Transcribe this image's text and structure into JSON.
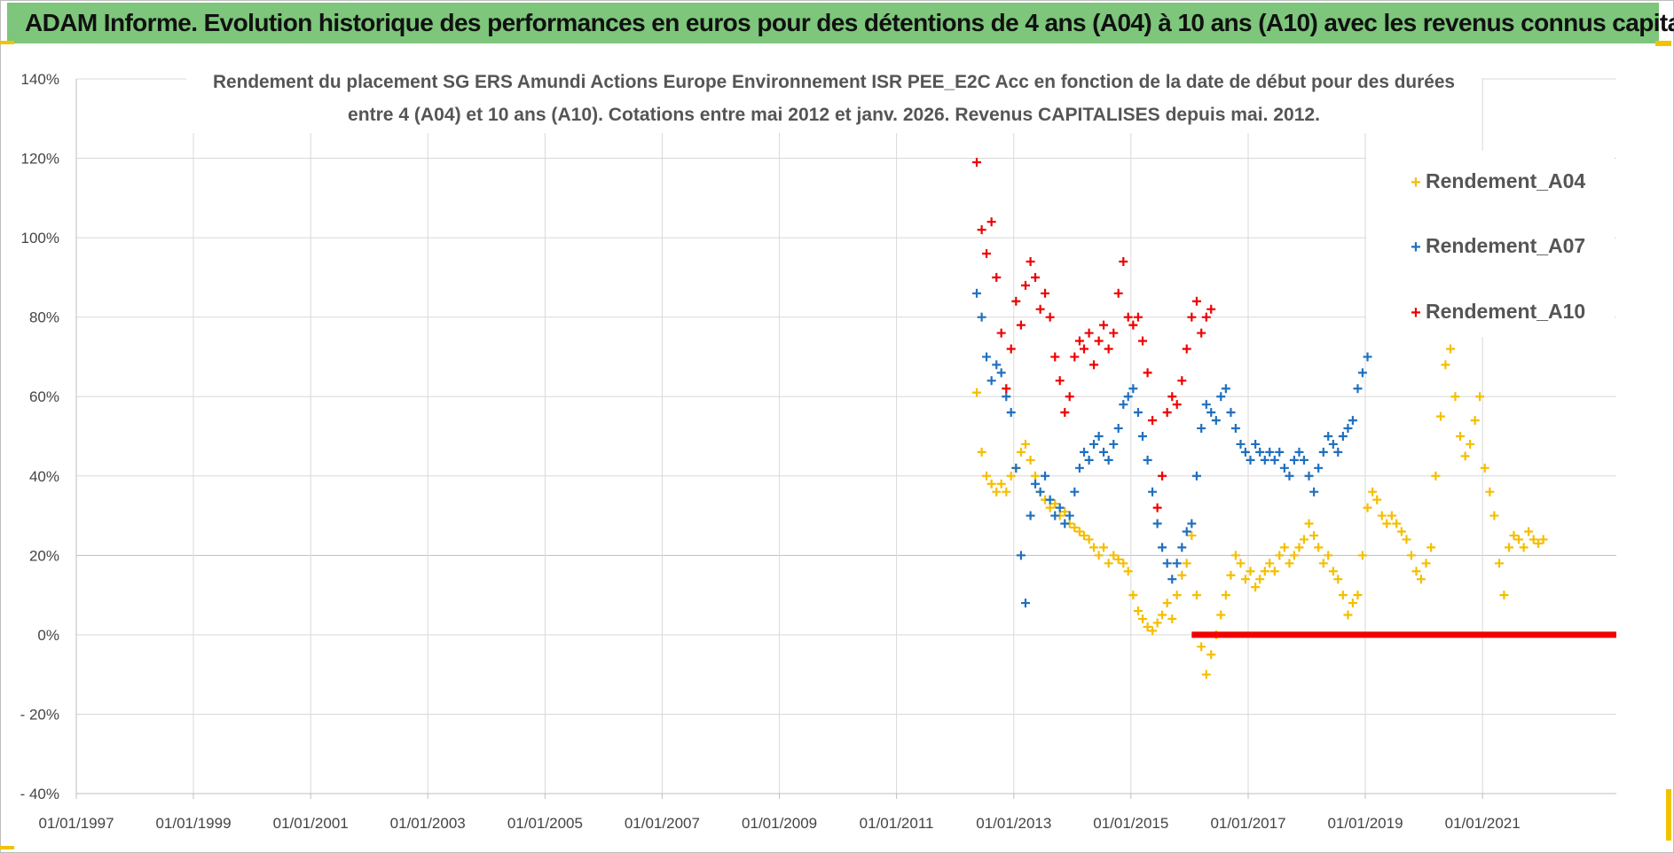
{
  "header": {
    "title": "ADAM Informe. Evolution historique des performances en euros pour des détentions de 4 ans (A04) à 10 ans (A10) avec les revenus connus capitalisés"
  },
  "colors": {
    "banner": "#7dc67b",
    "A04": "#f5be00",
    "A07": "#1f6fbf",
    "A10": "#f00000",
    "grid": "#d9d9d9"
  },
  "chart_data": {
    "type": "scatter",
    "title_lines": [
      "Rendement du placement SG ERS Amundi Actions Europe Environnement ISR PEE_E2C Acc  en fonction de la date de début pour des durées",
      "entre 4 (A04) et 10 ans (A10). Cotations entre mai 2012 et janv. 2026. Revenus CAPITALISES depuis mai. 2012."
    ],
    "x_axis": {
      "type": "date",
      "range": [
        "1997-01-01",
        "2023-04-15"
      ],
      "tick_labels": [
        "01/01/1997",
        "01/01/1999",
        "01/01/2001",
        "01/01/2003",
        "01/01/2005",
        "01/01/2007",
        "01/01/2009",
        "01/01/2011",
        "01/01/2013",
        "01/01/2015",
        "01/01/2017",
        "01/01/2019",
        "01/01/2021"
      ]
    },
    "y_axis": {
      "unit": "percent",
      "range": [
        -40,
        140
      ],
      "ticks": [
        -40,
        -20,
        0,
        20,
        40,
        60,
        80,
        100,
        120,
        140
      ],
      "tick_labels": [
        "- 40%",
        "- 20%",
        "0%",
        "20%",
        "40%",
        "60%",
        "80%",
        "100%",
        "120%",
        "140%"
      ]
    },
    "grid": true,
    "legend_position": "top-right",
    "series": [
      {
        "name": "Rendement_A04",
        "marker": "+",
        "color": "#f5be00",
        "points": [
          [
            "2012-05-15",
            61
          ],
          [
            "2012-06-15",
            46
          ],
          [
            "2012-07-15",
            40
          ],
          [
            "2012-08-15",
            38
          ],
          [
            "2012-09-15",
            36
          ],
          [
            "2012-10-15",
            38
          ],
          [
            "2012-11-15",
            36
          ],
          [
            "2012-12-15",
            40
          ],
          [
            "2013-01-15",
            42
          ],
          [
            "2013-02-15",
            46
          ],
          [
            "2013-03-15",
            48
          ],
          [
            "2013-04-15",
            44
          ],
          [
            "2013-05-15",
            40
          ],
          [
            "2013-06-15",
            36
          ],
          [
            "2013-07-15",
            34
          ],
          [
            "2013-08-15",
            32
          ],
          [
            "2013-09-15",
            33
          ],
          [
            "2013-10-15",
            30
          ],
          [
            "2013-11-15",
            31
          ],
          [
            "2013-12-15",
            28
          ],
          [
            "2014-01-15",
            27
          ],
          [
            "2014-02-15",
            26
          ],
          [
            "2014-03-15",
            25
          ],
          [
            "2014-04-15",
            24
          ],
          [
            "2014-05-15",
            22
          ],
          [
            "2014-06-15",
            20
          ],
          [
            "2014-07-15",
            22
          ],
          [
            "2014-08-15",
            18
          ],
          [
            "2014-09-15",
            20
          ],
          [
            "2014-10-15",
            19
          ],
          [
            "2014-11-15",
            18
          ],
          [
            "2014-12-15",
            16
          ],
          [
            "2015-01-15",
            10
          ],
          [
            "2015-02-15",
            6
          ],
          [
            "2015-03-15",
            4
          ],
          [
            "2015-04-15",
            2
          ],
          [
            "2015-05-15",
            1
          ],
          [
            "2015-06-15",
            3
          ],
          [
            "2015-07-15",
            5
          ],
          [
            "2015-08-15",
            8
          ],
          [
            "2015-09-15",
            4
          ],
          [
            "2015-10-15",
            10
          ],
          [
            "2015-11-15",
            15
          ],
          [
            "2015-12-15",
            18
          ],
          [
            "2016-01-15",
            25
          ],
          [
            "2016-02-15",
            10
          ],
          [
            "2016-03-15",
            -3
          ],
          [
            "2016-04-15",
            -10
          ],
          [
            "2016-05-15",
            -5
          ],
          [
            "2016-06-15",
            0
          ],
          [
            "2016-07-15",
            5
          ],
          [
            "2016-08-15",
            10
          ],
          [
            "2016-09-15",
            15
          ],
          [
            "2016-10-15",
            20
          ],
          [
            "2016-11-15",
            18
          ],
          [
            "2016-12-15",
            14
          ],
          [
            "2017-01-15",
            16
          ],
          [
            "2017-02-15",
            12
          ],
          [
            "2017-03-15",
            14
          ],
          [
            "2017-04-15",
            16
          ],
          [
            "2017-05-15",
            18
          ],
          [
            "2017-06-15",
            16
          ],
          [
            "2017-07-15",
            20
          ],
          [
            "2017-08-15",
            22
          ],
          [
            "2017-09-15",
            18
          ],
          [
            "2017-10-15",
            20
          ],
          [
            "2017-11-15",
            22
          ],
          [
            "2017-12-15",
            24
          ],
          [
            "2018-01-15",
            28
          ],
          [
            "2018-02-15",
            25
          ],
          [
            "2018-03-15",
            22
          ],
          [
            "2018-04-15",
            18
          ],
          [
            "2018-05-15",
            20
          ],
          [
            "2018-06-15",
            16
          ],
          [
            "2018-07-15",
            14
          ],
          [
            "2018-08-15",
            10
          ],
          [
            "2018-09-15",
            5
          ],
          [
            "2018-10-15",
            8
          ],
          [
            "2018-11-15",
            10
          ],
          [
            "2018-12-15",
            20
          ],
          [
            "2019-01-15",
            32
          ],
          [
            "2019-02-15",
            36
          ],
          [
            "2019-03-15",
            34
          ],
          [
            "2019-04-15",
            30
          ],
          [
            "2019-05-15",
            28
          ],
          [
            "2019-06-15",
            30
          ],
          [
            "2019-07-15",
            28
          ],
          [
            "2019-08-15",
            26
          ],
          [
            "2019-09-15",
            24
          ],
          [
            "2019-10-15",
            20
          ],
          [
            "2019-11-15",
            16
          ],
          [
            "2019-12-15",
            14
          ],
          [
            "2020-01-15",
            18
          ],
          [
            "2020-02-15",
            22
          ],
          [
            "2020-03-15",
            40
          ],
          [
            "2020-04-15",
            55
          ],
          [
            "2020-05-15",
            68
          ],
          [
            "2020-06-15",
            72
          ],
          [
            "2020-07-15",
            60
          ],
          [
            "2020-08-15",
            50
          ],
          [
            "2020-09-15",
            45
          ],
          [
            "2020-10-15",
            48
          ],
          [
            "2020-11-15",
            54
          ],
          [
            "2020-12-15",
            60
          ],
          [
            "2021-01-15",
            42
          ],
          [
            "2021-02-15",
            36
          ],
          [
            "2021-03-15",
            30
          ],
          [
            "2021-04-15",
            18
          ],
          [
            "2021-05-15",
            10
          ],
          [
            "2021-06-15",
            22
          ],
          [
            "2021-07-15",
            25
          ],
          [
            "2021-08-15",
            24
          ],
          [
            "2021-09-15",
            22
          ],
          [
            "2021-10-15",
            26
          ],
          [
            "2021-11-15",
            24
          ],
          [
            "2021-12-15",
            23
          ],
          [
            "2022-01-15",
            24
          ]
        ]
      },
      {
        "name": "Rendement_A07",
        "marker": "+",
        "color": "#1f6fbf",
        "points": [
          [
            "2012-05-15",
            86
          ],
          [
            "2012-06-15",
            80
          ],
          [
            "2012-07-15",
            70
          ],
          [
            "2012-08-15",
            64
          ],
          [
            "2012-09-15",
            68
          ],
          [
            "2012-10-15",
            66
          ],
          [
            "2012-11-15",
            60
          ],
          [
            "2012-12-15",
            56
          ],
          [
            "2013-01-15",
            42
          ],
          [
            "2013-02-15",
            20
          ],
          [
            "2013-03-15",
            8
          ],
          [
            "2013-04-15",
            30
          ],
          [
            "2013-05-15",
            38
          ],
          [
            "2013-06-15",
            36
          ],
          [
            "2013-07-15",
            40
          ],
          [
            "2013-08-15",
            34
          ],
          [
            "2013-09-15",
            30
          ],
          [
            "2013-10-15",
            32
          ],
          [
            "2013-11-15",
            28
          ],
          [
            "2013-12-15",
            30
          ],
          [
            "2014-01-15",
            36
          ],
          [
            "2014-02-15",
            42
          ],
          [
            "2014-03-15",
            46
          ],
          [
            "2014-04-15",
            44
          ],
          [
            "2014-05-15",
            48
          ],
          [
            "2014-06-15",
            50
          ],
          [
            "2014-07-15",
            46
          ],
          [
            "2014-08-15",
            44
          ],
          [
            "2014-09-15",
            48
          ],
          [
            "2014-10-15",
            52
          ],
          [
            "2014-11-15",
            58
          ],
          [
            "2014-12-15",
            60
          ],
          [
            "2015-01-15",
            62
          ],
          [
            "2015-02-15",
            56
          ],
          [
            "2015-03-15",
            50
          ],
          [
            "2015-04-15",
            44
          ],
          [
            "2015-05-15",
            36
          ],
          [
            "2015-06-15",
            28
          ],
          [
            "2015-07-15",
            22
          ],
          [
            "2015-08-15",
            18
          ],
          [
            "2015-09-15",
            14
          ],
          [
            "2015-10-15",
            18
          ],
          [
            "2015-11-15",
            22
          ],
          [
            "2015-12-15",
            26
          ],
          [
            "2016-01-15",
            28
          ],
          [
            "2016-02-15",
            40
          ],
          [
            "2016-03-15",
            52
          ],
          [
            "2016-04-15",
            58
          ],
          [
            "2016-05-15",
            56
          ],
          [
            "2016-06-15",
            54
          ],
          [
            "2016-07-15",
            60
          ],
          [
            "2016-08-15",
            62
          ],
          [
            "2016-09-15",
            56
          ],
          [
            "2016-10-15",
            52
          ],
          [
            "2016-11-15",
            48
          ],
          [
            "2016-12-15",
            46
          ],
          [
            "2017-01-15",
            44
          ],
          [
            "2017-02-15",
            48
          ],
          [
            "2017-03-15",
            46
          ],
          [
            "2017-04-15",
            44
          ],
          [
            "2017-05-15",
            46
          ],
          [
            "2017-06-15",
            44
          ],
          [
            "2017-07-15",
            46
          ],
          [
            "2017-08-15",
            42
          ],
          [
            "2017-09-15",
            40
          ],
          [
            "2017-10-15",
            44
          ],
          [
            "2017-11-15",
            46
          ],
          [
            "2017-12-15",
            44
          ],
          [
            "2018-01-15",
            40
          ],
          [
            "2018-02-15",
            36
          ],
          [
            "2018-03-15",
            42
          ],
          [
            "2018-04-15",
            46
          ],
          [
            "2018-05-15",
            50
          ],
          [
            "2018-06-15",
            48
          ],
          [
            "2018-07-15",
            46
          ],
          [
            "2018-08-15",
            50
          ],
          [
            "2018-09-15",
            52
          ],
          [
            "2018-10-15",
            54
          ],
          [
            "2018-11-15",
            62
          ],
          [
            "2018-12-15",
            66
          ],
          [
            "2019-01-15",
            70
          ]
        ]
      },
      {
        "name": "Rendement_A10",
        "marker": "+",
        "color": "#f00000",
        "points": [
          [
            "2012-05-15",
            119
          ],
          [
            "2012-06-15",
            102
          ],
          [
            "2012-07-15",
            96
          ],
          [
            "2012-08-15",
            104
          ],
          [
            "2012-09-15",
            90
          ],
          [
            "2012-10-15",
            76
          ],
          [
            "2012-11-15",
            62
          ],
          [
            "2012-12-15",
            72
          ],
          [
            "2013-01-15",
            84
          ],
          [
            "2013-02-15",
            78
          ],
          [
            "2013-03-15",
            88
          ],
          [
            "2013-04-15",
            94
          ],
          [
            "2013-05-15",
            90
          ],
          [
            "2013-06-15",
            82
          ],
          [
            "2013-07-15",
            86
          ],
          [
            "2013-08-15",
            80
          ],
          [
            "2013-09-15",
            70
          ],
          [
            "2013-10-15",
            64
          ],
          [
            "2013-11-15",
            56
          ],
          [
            "2013-12-15",
            60
          ],
          [
            "2014-01-15",
            70
          ],
          [
            "2014-02-15",
            74
          ],
          [
            "2014-03-15",
            72
          ],
          [
            "2014-04-15",
            76
          ],
          [
            "2014-05-15",
            68
          ],
          [
            "2014-06-15",
            74
          ],
          [
            "2014-07-15",
            78
          ],
          [
            "2014-08-15",
            72
          ],
          [
            "2014-09-15",
            76
          ],
          [
            "2014-10-15",
            86
          ],
          [
            "2014-11-15",
            94
          ],
          [
            "2014-12-15",
            80
          ],
          [
            "2015-01-15",
            78
          ],
          [
            "2015-02-15",
            80
          ],
          [
            "2015-03-15",
            74
          ],
          [
            "2015-04-15",
            66
          ],
          [
            "2015-05-15",
            54
          ],
          [
            "2015-06-15",
            32
          ],
          [
            "2015-07-15",
            40
          ],
          [
            "2015-08-15",
            56
          ],
          [
            "2015-09-15",
            60
          ],
          [
            "2015-10-15",
            58
          ],
          [
            "2015-11-15",
            64
          ],
          [
            "2015-12-15",
            72
          ],
          [
            "2016-01-15",
            80
          ],
          [
            "2016-02-15",
            84
          ],
          [
            "2016-03-15",
            76
          ],
          [
            "2016-04-15",
            80
          ],
          [
            "2016-05-15",
            82
          ]
        ],
        "zero_segment": {
          "from": "2016-01-15",
          "to": "2023-04-15",
          "value": 0
        }
      }
    ]
  }
}
